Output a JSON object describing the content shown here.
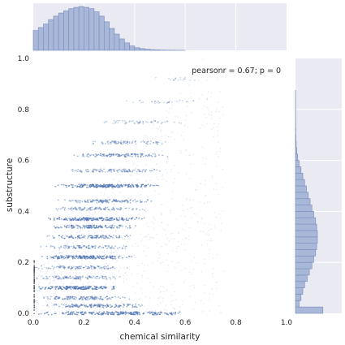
{
  "chart_data": {
    "type": "scatter",
    "kind": "jointplot",
    "xlabel": "chemical similarity",
    "ylabel": "substructure",
    "xlim": [
      0.0,
      1.0
    ],
    "ylim": [
      0.0,
      1.0
    ],
    "xticks": [
      "0.0",
      "0.2",
      "0.4",
      "0.6",
      "0.8",
      "1.0"
    ],
    "yticks": [
      "0.0",
      "0.2",
      "0.4",
      "0.6",
      "0.8",
      "1.0"
    ],
    "annotation": "pearsonr = 0.67; p = 0",
    "annotation_position": "top-right",
    "grid": true,
    "colors": {
      "point": "#4c72b0",
      "hist_fill": "#a9b8d8",
      "hist_edge": "#7f93c0",
      "margin_bg": "#eaeaf2",
      "grid": "#ffffff"
    },
    "scatter_bands": [
      {
        "y": 0.0,
        "x_range": [
          0.0,
          0.62
        ],
        "density": 1.0
      },
      {
        "y": 0.03,
        "x_range": [
          0.0,
          0.45
        ],
        "density": 0.7
      },
      {
        "y": 0.06,
        "x_range": [
          0.0,
          0.4
        ],
        "density": 0.6
      },
      {
        "y": 0.1,
        "x_range": [
          0.0,
          0.35
        ],
        "density": 0.9
      },
      {
        "y": 0.14,
        "x_range": [
          0.0,
          0.35
        ],
        "density": 0.5
      },
      {
        "y": 0.18,
        "x_range": [
          0.0,
          0.38
        ],
        "density": 0.5
      },
      {
        "y": 0.22,
        "x_range": [
          0.02,
          0.4
        ],
        "density": 0.9
      },
      {
        "y": 0.26,
        "x_range": [
          0.02,
          0.4
        ],
        "density": 0.5
      },
      {
        "y": 0.3,
        "x_range": [
          0.02,
          0.42
        ],
        "density": 0.6
      },
      {
        "y": 0.34,
        "x_range": [
          0.04,
          0.42
        ],
        "density": 0.7
      },
      {
        "y": 0.37,
        "x_range": [
          0.05,
          0.45
        ],
        "density": 0.9
      },
      {
        "y": 0.41,
        "x_range": [
          0.05,
          0.45
        ],
        "density": 0.5
      },
      {
        "y": 0.44,
        "x_range": [
          0.08,
          0.48
        ],
        "density": 0.6
      },
      {
        "y": 0.5,
        "x_range": [
          0.08,
          0.5
        ],
        "density": 1.0
      },
      {
        "y": 0.56,
        "x_range": [
          0.12,
          0.52
        ],
        "density": 0.5
      },
      {
        "y": 0.62,
        "x_range": [
          0.14,
          0.55
        ],
        "density": 0.6
      },
      {
        "y": 0.67,
        "x_range": [
          0.2,
          0.55
        ],
        "density": 0.4
      },
      {
        "y": 0.75,
        "x_range": [
          0.25,
          0.6
        ],
        "density": 0.25
      },
      {
        "y": 0.83,
        "x_range": [
          0.35,
          0.65
        ],
        "density": 0.15
      },
      {
        "y": 0.92,
        "x_range": [
          0.45,
          0.7
        ],
        "density": 0.08
      }
    ],
    "x_marginal": {
      "bin_width": 0.02,
      "bin_start": 0.0,
      "heights": [
        0.45,
        0.52,
        0.6,
        0.7,
        0.78,
        0.85,
        0.9,
        0.95,
        0.98,
        1.0,
        0.98,
        0.95,
        0.88,
        0.78,
        0.65,
        0.5,
        0.37,
        0.26,
        0.17,
        0.1,
        0.06,
        0.04,
        0.025,
        0.015,
        0.01,
        0.006,
        0.004,
        0.003,
        0.002,
        0.001
      ]
    },
    "y_marginal": {
      "bin_width": 0.025,
      "bin_start": 0.0,
      "heights": [
        0.75,
        0.1,
        0.15,
        0.2,
        0.25,
        0.32,
        0.38,
        0.45,
        0.5,
        0.55,
        0.58,
        0.6,
        0.6,
        0.58,
        0.55,
        0.5,
        0.45,
        0.4,
        0.35,
        0.3,
        0.25,
        0.2,
        0.15,
        0.1,
        0.06,
        0.035,
        0.02,
        0.012,
        0.008,
        0.005,
        0.004,
        0.003,
        0.002,
        0.002,
        0.001
      ]
    }
  }
}
